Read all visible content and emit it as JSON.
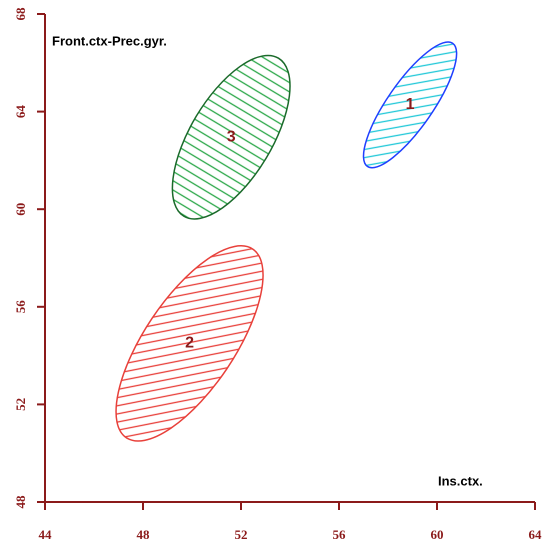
{
  "chart_data": {
    "type": "ellipse",
    "y_annotation": "Front.ctx-Prec.gyr.",
    "x_annotation": "Ins.ctx.",
    "xlim": [
      44,
      64
    ],
    "xticks": [
      44,
      48,
      52,
      56,
      60,
      64
    ],
    "ylim": [
      48,
      68
    ],
    "yticks": [
      48,
      52,
      56,
      60,
      64,
      68
    ],
    "axis_color": "#8b1a1a",
    "series": [
      {
        "name": "1",
        "color": "#1f3fff",
        "hatch_color": "#22c8d8",
        "hatch": "diagonal",
        "x_range": [
          57.0,
          60.8
        ],
        "y_range": [
          61.7,
          66.85
        ],
        "x_at_top": 60.45
      },
      {
        "name": "2",
        "color": "#e8403a",
        "hatch_color": "#e8403a",
        "hatch": "diagonal",
        "x_range": [
          46.9,
          52.9
        ],
        "y_range": [
          50.5,
          58.5
        ],
        "x_at_top": 52.0
      },
      {
        "name": "3",
        "color": "#1a6a2a",
        "hatch_color": "#2ca84a",
        "hatch": "vertical",
        "x_range": [
          49.2,
          54.0
        ],
        "y_range": [
          59.6,
          66.3
        ],
        "x_at_top": 53.1
      }
    ]
  }
}
